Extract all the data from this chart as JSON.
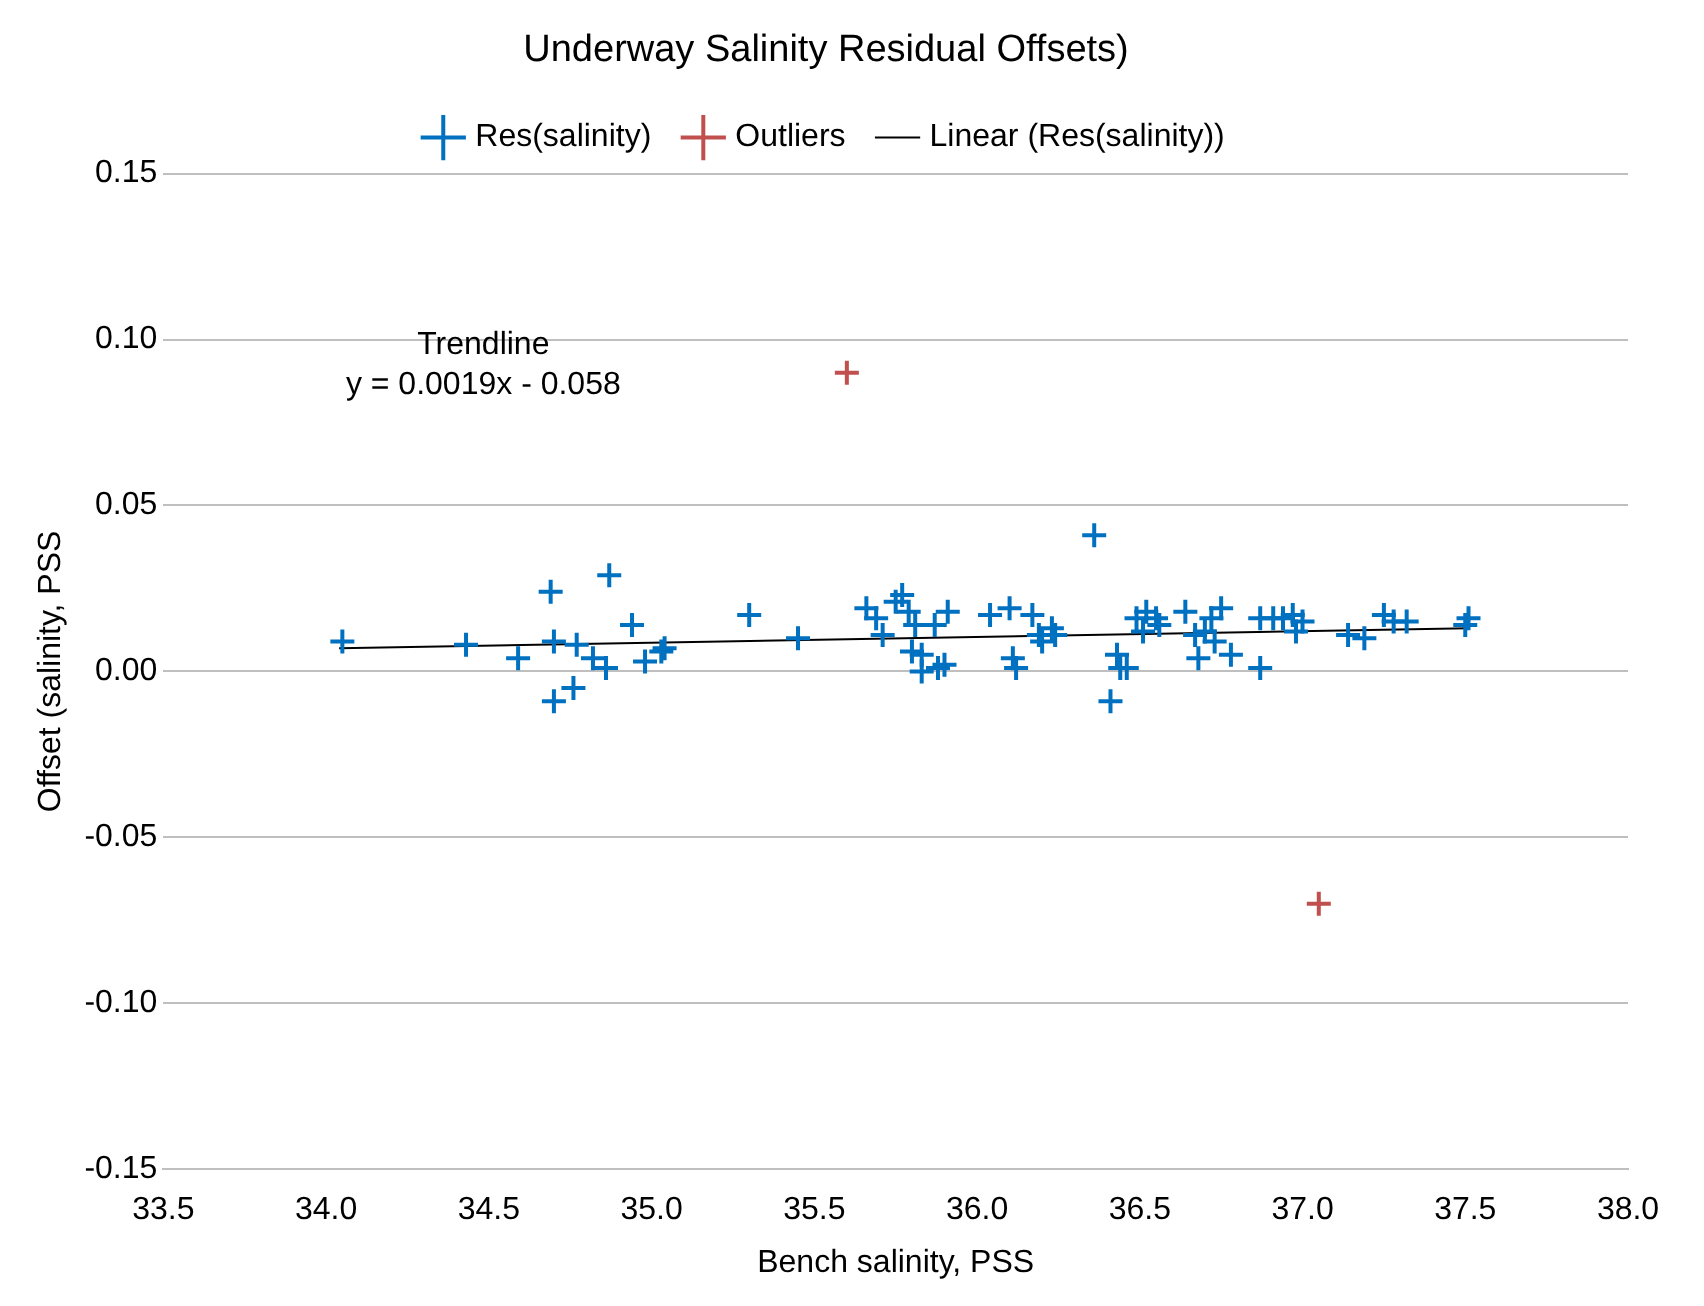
{
  "chart_data": {
    "type": "scatter",
    "title": "Underway Salinity Residual Offsets)",
    "xlabel": "Bench salinity, PSS",
    "ylabel": "Offset (salinity, PSS",
    "legend": "top",
    "grid": "y",
    "marker": "cross",
    "xlim": [
      33.5,
      38.0
    ],
    "xticks": [
      {
        "value": 33.5,
        "label": "33.5"
      },
      {
        "value": 34,
        "label": "34.0"
      },
      {
        "value": 34.5,
        "label": "34.5"
      },
      {
        "value": 35,
        "label": "35.0"
      },
      {
        "value": 35.5,
        "label": "35.5"
      },
      {
        "value": 36,
        "label": "36.0"
      },
      {
        "value": 36.5,
        "label": "36.5"
      },
      {
        "value": 37,
        "label": "37.0"
      },
      {
        "value": 37.5,
        "label": "37.5"
      },
      {
        "value": 38,
        "label": "38.0"
      }
    ],
    "ylim": [
      -0.15,
      0.15
    ],
    "yticks": [
      {
        "value": -0.15,
        "label": "-0.15"
      },
      {
        "value": -0.1,
        "label": "-0.10"
      },
      {
        "value": -0.05,
        "label": "-0.05"
      },
      {
        "value": 0,
        "label": "0.00"
      },
      {
        "value": 0.05,
        "label": "0.05"
      },
      {
        "value": 0.1,
        "label": "0.10"
      },
      {
        "value": 0.15,
        "label": "0.15"
      }
    ],
    "annotations": [
      "Trendline",
      "y = 0.0019x - 0.058"
    ],
    "series": [
      {
        "name": "Res(salinity)",
        "type": "scatter",
        "color": "#0070c0",
        "x": [
          34.05,
          34.43,
          34.59,
          34.69,
          34.7,
          34.7,
          34.76,
          34.77,
          34.82,
          34.86,
          34.87,
          34.94,
          34.98,
          35.03,
          35.04,
          35.3,
          35.45,
          35.66,
          35.69,
          35.71,
          35.75,
          35.77,
          35.79,
          35.81,
          35.8,
          35.83,
          35.83,
          35.87,
          35.88,
          35.9,
          35.91,
          36.04,
          36.1,
          36.11,
          36.12,
          36.17,
          36.19,
          36.2,
          36.23,
          36.24,
          36.36,
          36.41,
          36.43,
          36.44,
          36.46,
          36.49,
          36.51,
          36.52,
          36.55,
          36.56,
          36.64,
          36.67,
          36.68,
          36.7,
          36.72,
          36.73,
          36.75,
          36.78,
          36.87,
          36.87,
          36.91,
          36.94,
          36.97,
          36.98,
          37.0,
          37.14,
          37.19,
          37.25,
          37.28,
          37.32,
          37.5,
          37.51
        ],
        "values": [
          0.009,
          0.008,
          0.004,
          0.024,
          0.009,
          -0.009,
          -0.005,
          0.008,
          0.004,
          0.001,
          0.029,
          0.014,
          0.003,
          0.006,
          0.007,
          0.017,
          0.01,
          0.019,
          0.016,
          0.011,
          0.021,
          0.023,
          0.018,
          0.014,
          0.006,
          0.005,
          0.0,
          0.014,
          0.001,
          0.002,
          0.018,
          0.017,
          0.019,
          0.004,
          0.001,
          0.017,
          0.011,
          0.009,
          0.013,
          0.011,
          0.041,
          -0.009,
          0.005,
          0.001,
          0.001,
          0.016,
          0.012,
          0.018,
          0.016,
          0.014,
          0.018,
          0.011,
          0.004,
          0.012,
          0.016,
          0.009,
          0.019,
          0.005,
          0.016,
          0.001,
          0.016,
          0.016,
          0.017,
          0.012,
          0.015,
          0.011,
          0.01,
          0.017,
          0.015,
          0.015,
          0.014,
          0.016
        ]
      },
      {
        "name": "Outliers",
        "type": "scatter",
        "color": "#c0504d",
        "x": [
          35.6,
          37.05
        ],
        "values": [
          0.09,
          -0.07
        ]
      },
      {
        "name": "Linear (Res(salinity))",
        "type": "line",
        "color": "#000000",
        "marker": "none",
        "x": [
          34.04,
          37.51
        ],
        "values": [
          0.007,
          0.013
        ]
      }
    ]
  }
}
